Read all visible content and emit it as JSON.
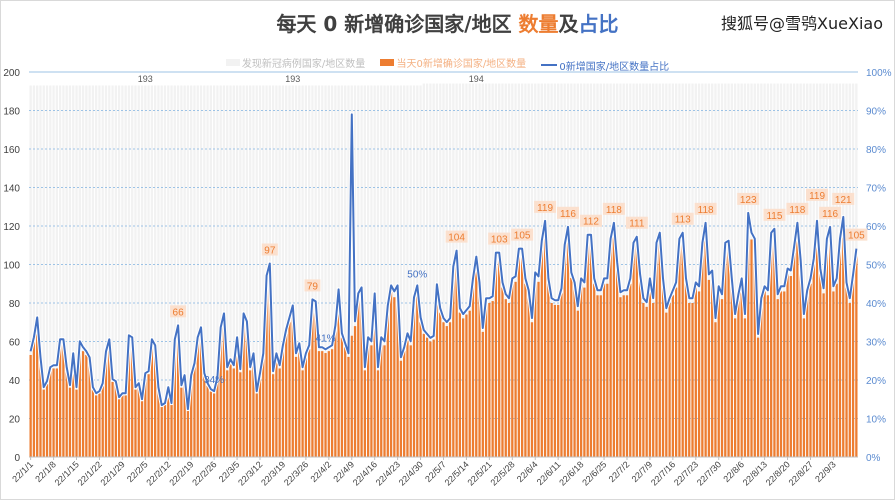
{
  "title": {
    "part1": "每天 0 新增确诊国家/地区 ",
    "part2": "数量",
    "part3": "及",
    "part4": "占比"
  },
  "watermark": "搜狐号@雪鸮XueXiao",
  "colors": {
    "grey_bar": "#F2F2F2",
    "orange_bar": "#ED7D31",
    "line": "#4472C4",
    "grid": "#9DC3E6",
    "title": "#404040"
  },
  "chart_data": {
    "type": "bar+line",
    "start_date": "22/1/1",
    "legend": [
      "发现新冠病例国家/地区数量",
      "当天0新增确诊国家/地区数量",
      "0新增国家/地区数量占比"
    ],
    "legend_position": "top",
    "y_left": {
      "range": [
        0,
        200
      ],
      "ticks": [
        0,
        20,
        40,
        60,
        80,
        100,
        120,
        140,
        160,
        180,
        200
      ]
    },
    "y_right": {
      "range": [
        0,
        100
      ],
      "ticks": [
        "0%",
        "10%",
        "20%",
        "30%",
        "40%",
        "50%",
        "60%",
        "70%",
        "80%",
        "90%",
        "100%"
      ]
    },
    "grid": true,
    "x_tick_labels": [
      "22/1/1",
      "22/1/8",
      "22/1/15",
      "22/1/22",
      "22/1/29",
      "22/2/5",
      "22/2/12",
      "22/2/19",
      "22/2/26",
      "22/3/5",
      "22/3/12",
      "22/3/19",
      "22/3/26",
      "22/4/2",
      "22/4/9",
      "22/4/16",
      "22/4/23",
      "22/4/30",
      "22/5/7",
      "22/5/14",
      "22/5/21",
      "22/5/28",
      "22/6/4",
      "22/6/11",
      "22/6/18",
      "22/6/25",
      "22/7/2",
      "22/7/9",
      "22/7/16",
      "22/7/23",
      "22/7/30",
      "22/8/6",
      "22/8/13",
      "22/8/20",
      "22/8/27",
      "22/9/3"
    ],
    "total_countries_segments": [
      {
        "from_day": "22/1/1",
        "value": 193
      },
      {
        "from_day": "22/5/1",
        "value": 194
      }
    ],
    "total_labels": [
      {
        "date": "22/2/5",
        "value": "193"
      },
      {
        "date": "22/3/22",
        "value": "193"
      },
      {
        "date": "22/5/17",
        "value": "194"
      }
    ],
    "zero_new_counts": [
      53,
      60,
      70,
      50,
      35,
      38,
      45,
      46,
      46,
      59,
      59,
      45,
      36,
      52,
      35,
      58,
      55,
      53,
      50,
      35,
      32,
      33,
      37,
      53,
      59,
      39,
      38,
      30,
      32,
      32,
      61,
      60,
      35,
      37,
      29,
      42,
      43,
      59,
      56,
      35,
      26,
      27,
      35,
      27,
      59,
      66,
      36,
      41,
      24,
      41,
      47,
      60,
      65,
      42,
      37,
      34,
      33,
      40,
      65,
      72,
      45,
      49,
      46,
      60,
      44,
      72,
      68,
      45,
      52,
      33,
      42,
      52,
      91,
      97,
      43,
      52,
      46,
      56,
      64,
      70,
      76,
      52,
      57,
      45,
      52,
      56,
      79,
      78,
      55,
      55,
      54,
      55,
      56,
      66,
      84,
      62,
      57,
      52,
      63,
      68,
      82,
      85,
      45,
      60,
      58,
      82,
      45,
      60,
      58,
      76,
      86,
      83,
      86,
      50,
      55,
      62,
      58,
      80,
      86,
      70,
      64,
      62,
      60,
      61,
      87,
      75,
      70,
      68,
      70,
      96,
      104,
      75,
      72,
      74,
      76,
      90,
      101,
      88,
      65,
      80,
      80,
      81,
      103,
      103,
      88,
      82,
      80,
      90,
      91,
      105,
      105,
      90,
      84,
      70,
      93,
      91,
      109,
      119,
      90,
      80,
      79,
      79,
      85,
      107,
      116,
      93,
      88,
      76,
      90,
      88,
      112,
      112,
      90,
      84,
      84,
      90,
      90,
      110,
      118,
      98,
      83,
      84,
      84,
      90,
      108,
      111,
      92,
      80,
      78,
      90,
      80,
      108,
      113,
      90,
      75,
      80,
      84,
      88,
      110,
      113,
      90,
      80,
      80,
      88,
      86,
      108,
      118,
      92,
      94,
      70,
      86,
      82,
      108,
      109,
      90,
      72,
      82,
      90,
      72,
      123,
      113,
      110,
      62,
      80,
      86,
      84,
      113,
      115,
      82,
      86,
      86,
      95,
      94,
      106,
      118,
      99,
      72,
      84,
      90,
      100,
      119,
      95,
      85,
      110,
      116,
      86,
      90,
      110,
      121,
      88,
      80,
      92,
      105
    ],
    "share_overrides": [
      {
        "date": "22/4/9",
        "value": 89
      }
    ],
    "count_labels": [
      {
        "date": "22/2/15",
        "value": "66"
      },
      {
        "date": "22/3/15",
        "value": "97"
      },
      {
        "date": "22/3/28",
        "value": "79"
      },
      {
        "date": "22/5/11",
        "value": "104"
      },
      {
        "date": "22/5/24",
        "value": "103"
      },
      {
        "date": "22/5/31",
        "value": "105"
      },
      {
        "date": "22/6/7",
        "value": "119"
      },
      {
        "date": "22/6/14",
        "value": "116"
      },
      {
        "date": "22/6/21",
        "value": "112"
      },
      {
        "date": "22/6/28",
        "value": "118"
      },
      {
        "date": "22/7/5",
        "value": "111"
      },
      {
        "date": "22/7/19",
        "value": "113"
      },
      {
        "date": "22/7/26",
        "value": "118"
      },
      {
        "date": "22/8/8",
        "value": "123"
      },
      {
        "date": "22/8/16",
        "value": "115"
      },
      {
        "date": "22/8/23",
        "value": "118"
      },
      {
        "date": "22/8/29",
        "value": "119"
      },
      {
        "date": "22/9/2",
        "value": "116"
      },
      {
        "date": "22/9/6",
        "value": "121"
      },
      {
        "date": "22/9/10",
        "value": "105"
      }
    ],
    "share_labels": [
      {
        "date": "22/2/26",
        "value": "34%"
      },
      {
        "date": "22/4/1",
        "value": "41%"
      },
      {
        "date": "22/4/29",
        "value": "50%"
      }
    ]
  }
}
